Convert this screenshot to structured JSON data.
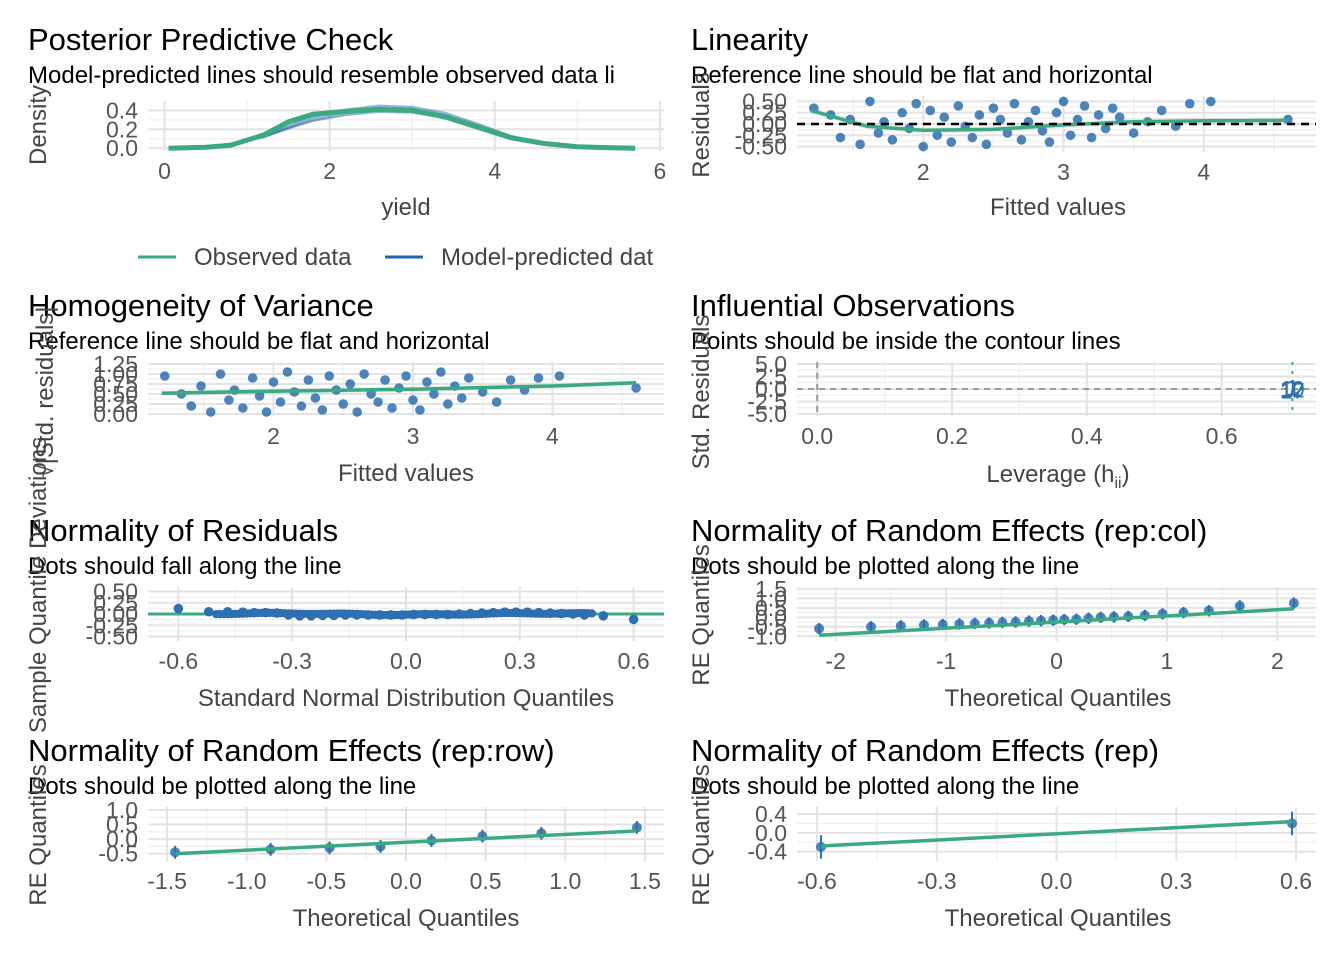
{
  "colors": {
    "observed": "#3aaa80",
    "model": "#2166ac",
    "points": "#2d6fb0",
    "grid": "#e3e3e3",
    "ref": "#000000"
  },
  "chart_data": [
    {
      "id": "ppc",
      "type": "line",
      "title": "Posterior Predictive Check",
      "subtitle": "Model-predicted lines should resemble observed data li",
      "xlabel": "yield",
      "ylabel": "Density",
      "xlim": [
        -0.2,
        6.05
      ],
      "ylim": [
        -0.03,
        0.5
      ],
      "xticks": [
        0,
        2,
        4,
        6
      ],
      "yticks": [
        0.0,
        0.2,
        0.4
      ],
      "ytick_labels": [
        "0.0",
        "0.2",
        "0.4"
      ],
      "legend": {
        "position": "bottom",
        "entries": [
          "Observed data",
          "Model-predicted dat"
        ]
      },
      "series": [
        {
          "name": "Observed data",
          "x": [
            0.05,
            0.5,
            0.8,
            1.2,
            1.5,
            1.8,
            2.2,
            2.6,
            3.0,
            3.4,
            3.8,
            4.2,
            4.6,
            5.0,
            5.4,
            5.7
          ],
          "y": [
            0.0,
            0.01,
            0.03,
            0.14,
            0.28,
            0.36,
            0.39,
            0.41,
            0.4,
            0.33,
            0.22,
            0.11,
            0.05,
            0.015,
            0.004,
            0.0
          ]
        },
        {
          "name": "Model-predicted data",
          "x": [
            0.05,
            0.5,
            0.8,
            1.2,
            1.5,
            1.8,
            2.2,
            2.6,
            3.0,
            3.4,
            3.8,
            4.2,
            4.6,
            5.0,
            5.4,
            5.7
          ],
          "y": [
            0.0,
            0.02,
            0.05,
            0.12,
            0.22,
            0.31,
            0.38,
            0.42,
            0.41,
            0.35,
            0.24,
            0.12,
            0.05,
            0.015,
            0.004,
            0.0
          ]
        }
      ]
    },
    {
      "id": "linearity",
      "type": "scatter",
      "title": "Linearity",
      "subtitle": "Reference line should be flat and horizontal",
      "xlabel": "Fitted values",
      "ylabel": "Residuals",
      "xlim": [
        1.1,
        4.8
      ],
      "ylim": [
        -0.62,
        0.62
      ],
      "xticks": [
        2,
        3,
        4
      ],
      "yticks": [
        -0.5,
        -0.25,
        0.0,
        0.25,
        0.5
      ],
      "ytick_labels": [
        "-0.50",
        "-0.25",
        "0.00",
        "0.25",
        "0.50"
      ],
      "reference_y": 0.0,
      "fit_x": [
        1.2,
        1.6,
        2.0,
        2.5,
        3.0,
        3.5,
        4.0,
        4.6
      ],
      "fit_y": [
        0.3,
        -0.05,
        -0.14,
        -0.12,
        -0.02,
        0.05,
        0.07,
        0.08
      ],
      "points_x": [
        1.22,
        1.34,
        1.41,
        1.48,
        1.55,
        1.62,
        1.68,
        1.72,
        1.78,
        1.85,
        1.9,
        1.95,
        2.0,
        2.05,
        2.1,
        2.15,
        2.2,
        2.25,
        2.3,
        2.35,
        2.4,
        2.45,
        2.5,
        2.55,
        2.6,
        2.65,
        2.7,
        2.75,
        2.8,
        2.85,
        2.9,
        2.95,
        3.0,
        3.05,
        3.1,
        3.15,
        3.2,
        3.25,
        3.3,
        3.35,
        3.4,
        3.5,
        3.6,
        3.7,
        3.8,
        3.9,
        4.05,
        4.6
      ],
      "points_y": [
        0.35,
        0.2,
        -0.3,
        0.1,
        -0.45,
        0.5,
        -0.2,
        0.05,
        -0.35,
        0.25,
        -0.1,
        0.45,
        -0.5,
        0.3,
        -0.25,
        0.15,
        -0.4,
        0.4,
        -0.05,
        -0.3,
        0.2,
        -0.45,
        0.35,
        0.1,
        -0.2,
        0.45,
        -0.35,
        0.05,
        0.3,
        -0.15,
        -0.4,
        0.25,
        0.5,
        -0.25,
        0.1,
        0.4,
        -0.3,
        0.2,
        -0.1,
        0.35,
        0.15,
        -0.2,
        0.05,
        0.3,
        -0.05,
        0.45,
        0.5,
        0.1
      ]
    },
    {
      "id": "homogeneity",
      "type": "scatter",
      "title": "Homogeneity of Variance",
      "subtitle": "Reference line should be flat and horizontal",
      "xlabel": "Fitted values",
      "ylabel": "√|Std. residuals|",
      "xlim": [
        1.1,
        4.8
      ],
      "ylim": [
        -0.05,
        1.3
      ],
      "xticks": [
        2,
        3,
        4
      ],
      "yticks": [
        0.0,
        0.25,
        0.5,
        0.75,
        1.0,
        1.25
      ],
      "ytick_labels": [
        "0.00",
        "0.25",
        "0.50",
        "0.75",
        "1.00",
        "1.25"
      ],
      "fit_x": [
        1.2,
        2.0,
        3.0,
        4.0,
        4.6
      ],
      "fit_y": [
        0.52,
        0.57,
        0.62,
        0.7,
        0.78
      ],
      "points_x": [
        1.22,
        1.34,
        1.41,
        1.48,
        1.55,
        1.62,
        1.68,
        1.72,
        1.78,
        1.85,
        1.9,
        1.95,
        2.0,
        2.05,
        2.1,
        2.15,
        2.2,
        2.25,
        2.3,
        2.35,
        2.4,
        2.45,
        2.5,
        2.55,
        2.6,
        2.65,
        2.7,
        2.75,
        2.8,
        2.85,
        2.9,
        2.95,
        3.0,
        3.05,
        3.1,
        3.15,
        3.2,
        3.25,
        3.3,
        3.35,
        3.4,
        3.5,
        3.6,
        3.7,
        3.8,
        3.9,
        4.05,
        4.6
      ],
      "points_y": [
        0.95,
        0.5,
        0.2,
        0.7,
        0.05,
        1.0,
        0.35,
        0.6,
        0.15,
        0.9,
        0.45,
        0.05,
        0.8,
        0.3,
        1.05,
        0.55,
        0.2,
        0.85,
        0.4,
        0.1,
        0.95,
        0.6,
        0.25,
        0.75,
        0.05,
        1.0,
        0.5,
        0.3,
        0.85,
        0.15,
        0.65,
        0.95,
        0.35,
        0.1,
        0.8,
        0.5,
        1.05,
        0.25,
        0.7,
        0.4,
        0.9,
        0.55,
        0.3,
        0.85,
        0.6,
        0.9,
        0.95,
        0.65
      ]
    },
    {
      "id": "influential",
      "type": "scatter",
      "title": "Influential Observations",
      "subtitle": "Points should be inside the contour lines",
      "xlabel": "Leverage (h",
      "xlabel_sub": "ii",
      "xlabel_end": ")",
      "ylabel": "Std. Residuals",
      "xlim": [
        -0.03,
        0.74
      ],
      "ylim": [
        -5.4,
        5.4
      ],
      "xticks": [
        0.0,
        0.2,
        0.4,
        0.6
      ],
      "yticks": [
        -5.0,
        -2.5,
        0.0,
        2.5,
        5.0
      ],
      "xtick_labels": [
        "0.0",
        "0.2",
        "0.4",
        "0.6"
      ],
      "ytick_labels": [
        "-5.0",
        "-2.5",
        "0.0",
        "2.5",
        "5.0"
      ],
      "contour_x": 0.705,
      "point_labels": [
        "1",
        "10",
        "12",
        "17",
        "7"
      ],
      "points_x": [
        0.705,
        0.705,
        0.705,
        0.705,
        0.705
      ],
      "points_y": [
        0.3,
        0.1,
        -0.1,
        -0.3,
        0.0
      ]
    },
    {
      "id": "normres",
      "type": "scatter",
      "title": "Normality of Residuals",
      "subtitle": "Dots should fall along the line",
      "xlabel": "Standard Normal Distribution Quantiles",
      "ylabel": "Sample Quantile Deviations",
      "xlim": [
        -0.68,
        0.68
      ],
      "ylim": [
        -0.6,
        0.6
      ],
      "xticks": [
        -0.6,
        -0.3,
        0.0,
        0.3,
        0.6
      ],
      "yticks": [
        -0.5,
        -0.25,
        0.0,
        0.25,
        0.5
      ],
      "xtick_labels": [
        "-0.6",
        "-0.3",
        "0.0",
        "0.3",
        "0.6"
      ],
      "ytick_labels": [
        "-0.50",
        "-0.25",
        "0.00",
        "0.25",
        "0.50"
      ],
      "reference_y": 0.0,
      "points_x": [
        -0.6,
        -0.52,
        -0.47,
        -0.43,
        -0.4,
        -0.37,
        -0.34,
        -0.31,
        -0.28,
        -0.25,
        -0.22,
        -0.19,
        -0.16,
        -0.13,
        -0.1,
        -0.07,
        -0.04,
        -0.01,
        0.02,
        0.05,
        0.08,
        0.11,
        0.14,
        0.17,
        0.2,
        0.23,
        0.26,
        0.29,
        0.32,
        0.35,
        0.38,
        0.41,
        0.44,
        0.47,
        0.52,
        0.6
      ],
      "points_y": [
        0.12,
        0.05,
        0.05,
        0.04,
        0.03,
        0.03,
        0.02,
        -0.02,
        -0.04,
        -0.04,
        -0.03,
        -0.03,
        -0.02,
        -0.02,
        -0.02,
        -0.02,
        -0.02,
        -0.02,
        -0.01,
        -0.01,
        -0.01,
        -0.01,
        0.0,
        0.01,
        0.02,
        0.03,
        0.04,
        0.04,
        0.04,
        0.03,
        0.02,
        0.01,
        0.0,
        -0.02,
        -0.04,
        -0.12
      ]
    },
    {
      "id": "re_repcol",
      "type": "scatter",
      "title": "Normality of Random Effects (rep:col)",
      "subtitle": "Dots should be plotted along the line",
      "xlabel": "Theoretical Quantiles",
      "ylabel": "RE Quantiles",
      "xlim": [
        -2.35,
        2.35
      ],
      "ylim": [
        -1.25,
        1.6
      ],
      "xticks": [
        -2,
        -1,
        0,
        1,
        2
      ],
      "yticks": [
        -1.0,
        -0.5,
        0.0,
        0.5,
        1.0,
        1.5
      ],
      "ytick_labels": [
        "-1.0",
        "-0.5",
        "0.0",
        "0.5",
        "1.0",
        "1.5"
      ],
      "fit_x": [
        -2.15,
        2.15
      ],
      "fit_y": [
        -0.95,
        0.45
      ],
      "points_x": [
        -2.15,
        -1.68,
        -1.41,
        -1.2,
        -1.03,
        -0.88,
        -0.74,
        -0.61,
        -0.49,
        -0.37,
        -0.25,
        -0.14,
        -0.03,
        0.07,
        0.18,
        0.29,
        0.4,
        0.52,
        0.65,
        0.8,
        0.96,
        1.15,
        1.38,
        1.66,
        2.15
      ],
      "points_y": [
        -0.6,
        -0.5,
        -0.45,
        -0.4,
        -0.38,
        -0.35,
        -0.32,
        -0.3,
        -0.27,
        -0.25,
        -0.2,
        -0.18,
        -0.15,
        -0.12,
        -0.1,
        -0.05,
        0.0,
        0.02,
        0.05,
        0.1,
        0.18,
        0.25,
        0.35,
        0.6,
        0.75
      ],
      "err": 0.3
    },
    {
      "id": "re_reprow",
      "type": "scatter",
      "title": "Normality of Random Effects (rep:row)",
      "subtitle": "Dots should be plotted along the line",
      "xlabel": "Theoretical Quantiles",
      "ylabel": "RE Quantiles",
      "xlim": [
        -1.62,
        1.62
      ],
      "ylim": [
        -0.75,
        1.1
      ],
      "xticks": [
        -1.5,
        -1.0,
        -0.5,
        0.0,
        0.5,
        1.0,
        1.5
      ],
      "xtick_labels": [
        "-1.5",
        "-1.0",
        "-0.5",
        "0.0",
        "0.5",
        "1.0",
        "1.5"
      ],
      "yticks": [
        -0.5,
        0.0,
        0.5,
        1.0
      ],
      "ytick_labels": [
        "-0.5",
        "0.0",
        "0.5",
        "1.0"
      ],
      "fit_x": [
        -1.45,
        1.45
      ],
      "fit_y": [
        -0.5,
        0.28
      ],
      "points_x": [
        -1.45,
        -0.85,
        -0.48,
        -0.16,
        0.16,
        0.48,
        0.85,
        1.45
      ],
      "points_y": [
        -0.45,
        -0.35,
        -0.3,
        -0.25,
        -0.05,
        0.1,
        0.2,
        0.4
      ],
      "err": 0.22
    },
    {
      "id": "re_rep",
      "type": "scatter",
      "title": "Normality of Random Effects (rep)",
      "subtitle": "Dots should be plotted along the line",
      "xlabel": "Theoretical Quantiles",
      "ylabel": "RE Quantiles",
      "xlim": [
        -0.65,
        0.65
      ],
      "ylim": [
        -0.6,
        0.55
      ],
      "xticks": [
        -0.6,
        -0.3,
        0.0,
        0.3,
        0.6
      ],
      "xtick_labels": [
        "-0.6",
        "-0.3",
        "0.0",
        "0.3",
        "0.6"
      ],
      "yticks": [
        -0.4,
        0.0,
        0.4
      ],
      "ytick_labels": [
        "-0.4",
        "0.0",
        "0.4"
      ],
      "fit_x": [
        -0.59,
        0.59
      ],
      "fit_y": [
        -0.28,
        0.24
      ],
      "points_x": [
        -0.59,
        0.59
      ],
      "points_y": [
        -0.3,
        0.2
      ],
      "err": 0.25
    }
  ]
}
